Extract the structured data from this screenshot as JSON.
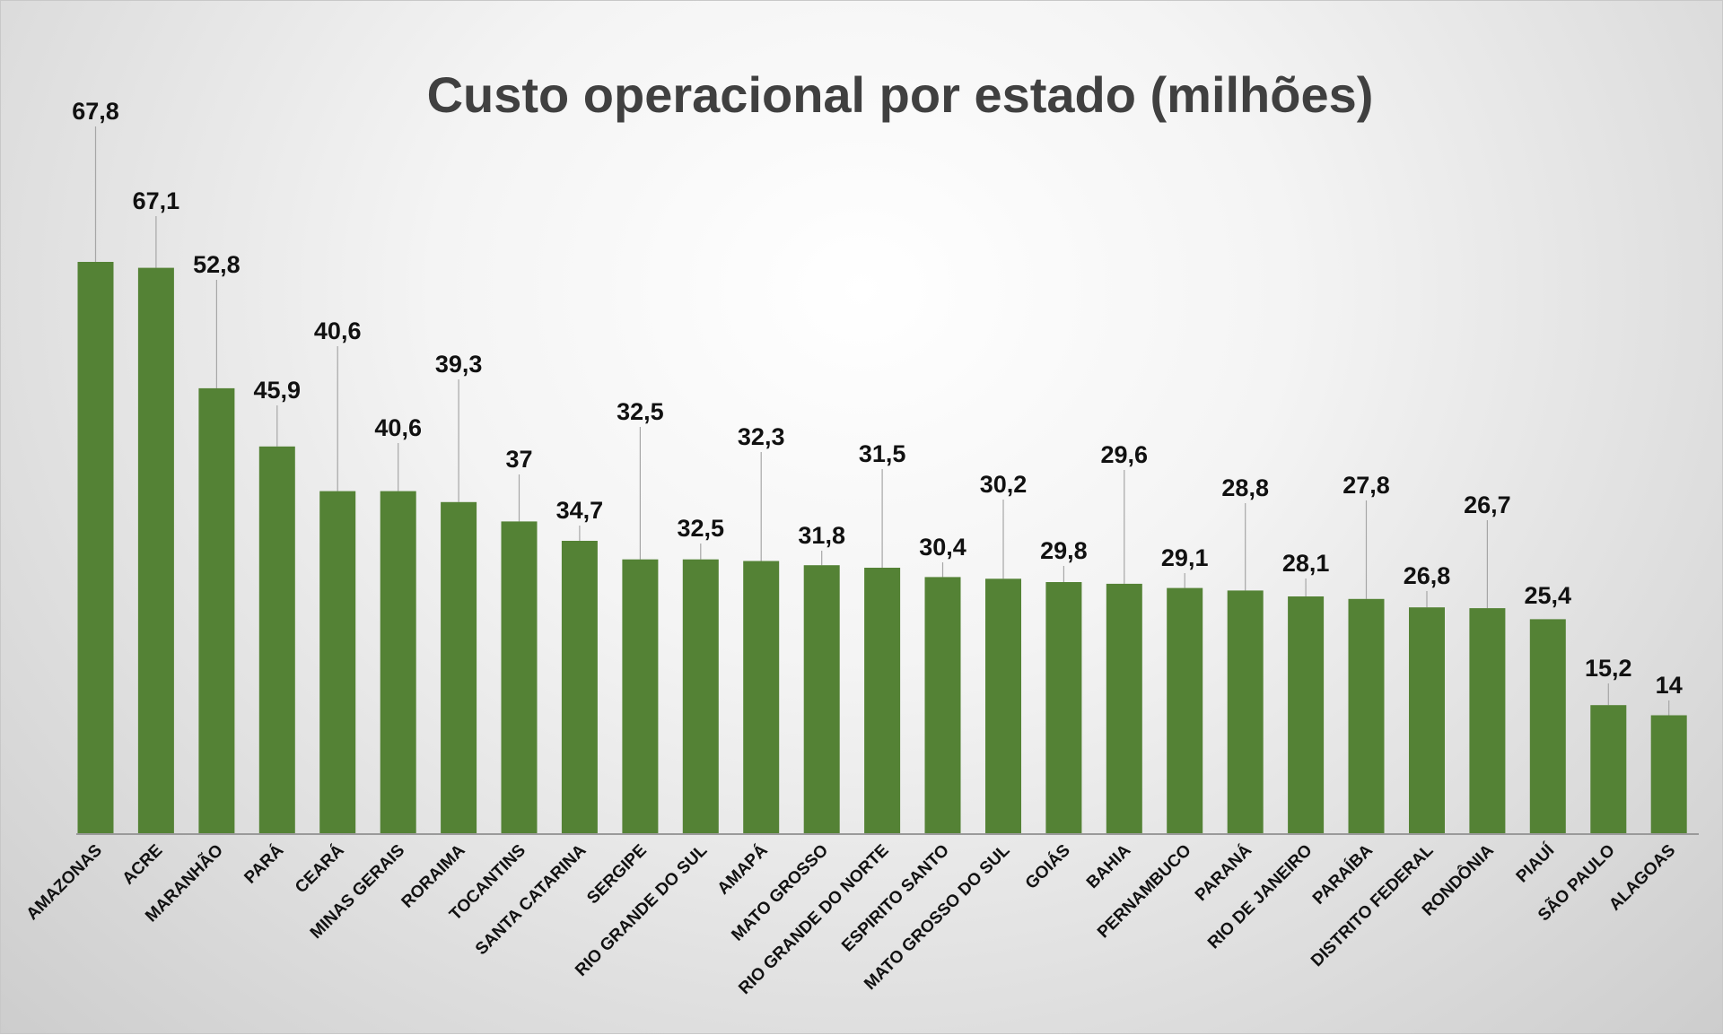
{
  "chart_data": {
    "type": "bar",
    "title": "Custo operacional por estado (milhões)",
    "xlabel": "",
    "ylabel": "",
    "ylim": [
      0,
      70
    ],
    "grid": false,
    "legend": "none",
    "bar_color": "#548235",
    "categories": [
      "AMAZONAS",
      "ACRE",
      "MARANHÃO",
      "PARÁ",
      "CEARÁ",
      "MINAS GERAIS",
      "RORAIMA",
      "TOCANTINS",
      "SANTA CATARINA",
      "SERGIPE",
      "RIO GRANDE DO SUL",
      "AMAPÁ",
      "MATO GROSSO",
      "RIO GRANDE DO NORTE",
      "ESPIRITO SANTO",
      "MATO GROSSO DO SUL",
      "GOIÁS",
      "BAHIA",
      "PERNAMBUCO",
      "PARANÁ",
      "RIO DE JANEIRO",
      "PARAÍBA",
      "DISTRITO FEDERAL",
      "RONDÔNIA",
      "PIAUÍ",
      "SÃO PAULO",
      "ALAGOAS"
    ],
    "values": [
      67.8,
      67.1,
      52.8,
      45.9,
      40.6,
      40.6,
      39.3,
      37,
      34.7,
      32.5,
      32.5,
      32.3,
      31.8,
      31.5,
      30.4,
      30.2,
      29.8,
      29.6,
      29.1,
      28.8,
      28.1,
      27.8,
      26.8,
      26.7,
      25.4,
      15.2,
      14
    ],
    "data_labels": [
      "67,8",
      "67,1",
      "52,8",
      "45,9",
      "40,6",
      "40,6",
      "39,3",
      "37",
      "34,7",
      "32,5",
      "32,5",
      "32,3",
      "31,8",
      "31,5",
      "30,4",
      "30,2",
      "29,8",
      "29,6",
      "29,1",
      "28,8",
      "28,1",
      "27,8",
      "26,8",
      "26,7",
      "25,4",
      "15,2",
      "14"
    ]
  }
}
